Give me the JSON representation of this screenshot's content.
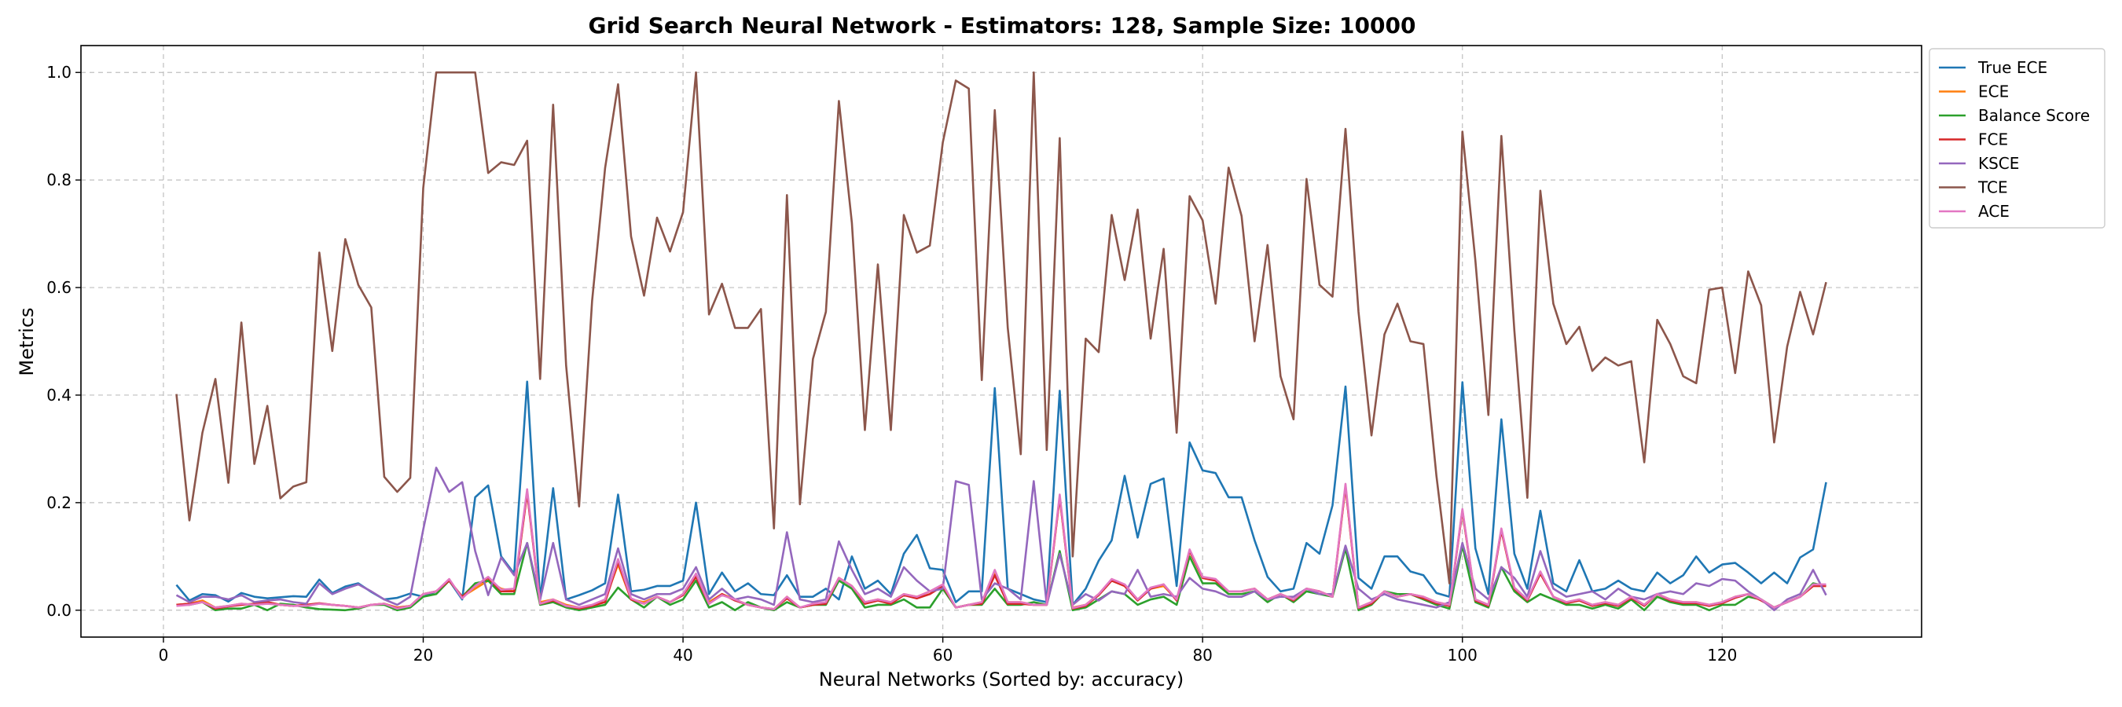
{
  "chart_data": {
    "type": "line",
    "title": "Grid Search Neural Network - Estimators: 128, Sample Size: 10000",
    "xlabel": "Neural Networks (Sorted by: accuracy)",
    "ylabel": "Metrics",
    "xlim": [
      -6.35,
      135.35
    ],
    "ylim": [
      -0.05,
      1.05
    ],
    "xticks": [
      0,
      20,
      40,
      60,
      80,
      100,
      120
    ],
    "yticks": [
      0.0,
      0.2,
      0.4,
      0.6,
      0.8,
      1.0
    ],
    "grid": true,
    "legend_position": "outside-top-right",
    "series": [
      {
        "name": "True ECE",
        "color": "#1f77b4",
        "values": [
          0.047,
          0.018,
          0.03,
          0.028,
          0.016,
          0.032,
          0.025,
          0.022,
          0.024,
          0.026,
          0.025,
          0.057,
          0.032,
          0.044,
          0.05,
          0.034,
          0.02,
          0.023,
          0.031,
          0.025,
          0.035,
          0.055,
          0.02,
          0.21,
          0.232,
          0.1,
          0.068,
          0.425,
          0.02,
          0.227,
          0.02,
          0.028,
          0.037,
          0.05,
          0.215,
          0.035,
          0.038,
          0.045,
          0.045,
          0.055,
          0.2,
          0.03,
          0.07,
          0.035,
          0.05,
          0.03,
          0.028,
          0.065,
          0.025,
          0.025,
          0.04,
          0.02,
          0.1,
          0.04,
          0.055,
          0.03,
          0.105,
          0.14,
          0.078,
          0.075,
          0.015,
          0.035,
          0.035,
          0.413,
          0.04,
          0.03,
          0.02,
          0.015,
          0.408,
          0.01,
          0.04,
          0.092,
          0.13,
          0.25,
          0.135,
          0.235,
          0.245,
          0.045,
          0.312,
          0.26,
          0.255,
          0.21,
          0.21,
          0.13,
          0.062,
          0.035,
          0.04,
          0.125,
          0.105,
          0.195,
          0.416,
          0.06,
          0.04,
          0.1,
          0.1,
          0.072,
          0.065,
          0.032,
          0.025,
          0.424,
          0.115,
          0.03,
          0.355,
          0.105,
          0.04,
          0.185,
          0.05,
          0.035,
          0.093,
          0.035,
          0.04,
          0.055,
          0.04,
          0.035,
          0.07,
          0.05,
          0.065,
          0.1,
          0.07,
          0.085,
          0.088,
          0.07,
          0.05,
          0.07,
          0.05,
          0.098,
          0.113,
          0.238
        ]
      },
      {
        "name": "ECE",
        "color": "#ff7f0e",
        "values": [
          0.01,
          0.012,
          0.018,
          0.005,
          0.008,
          0.012,
          0.01,
          0.015,
          0.01,
          0.008,
          0.01,
          0.012,
          0.01,
          0.008,
          0.005,
          0.01,
          0.012,
          0.005,
          0.008,
          0.03,
          0.035,
          0.055,
          0.025,
          0.04,
          0.055,
          0.04,
          0.035,
          0.22,
          0.015,
          0.02,
          0.01,
          0.005,
          0.008,
          0.02,
          0.085,
          0.02,
          0.015,
          0.025,
          0.015,
          0.03,
          0.065,
          0.015,
          0.03,
          0.02,
          0.01,
          0.005,
          0.002,
          0.025,
          0.005,
          0.01,
          0.015,
          0.06,
          0.045,
          0.015,
          0.02,
          0.015,
          0.03,
          0.025,
          0.035,
          0.045,
          0.005,
          0.01,
          0.015,
          0.07,
          0.015,
          0.015,
          0.01,
          0.01,
          0.21,
          0.005,
          0.01,
          0.03,
          0.055,
          0.045,
          0.02,
          0.04,
          0.045,
          0.02,
          0.11,
          0.06,
          0.055,
          0.035,
          0.035,
          0.04,
          0.02,
          0.03,
          0.02,
          0.04,
          0.035,
          0.025,
          0.23,
          0.005,
          0.015,
          0.035,
          0.025,
          0.03,
          0.025,
          0.015,
          0.01,
          0.185,
          0.02,
          0.01,
          0.15,
          0.04,
          0.02,
          0.07,
          0.025,
          0.015,
          0.02,
          0.01,
          0.015,
          0.01,
          0.025,
          0.01,
          0.03,
          0.02,
          0.015,
          0.015,
          0.01,
          0.015,
          0.025,
          0.03,
          0.02,
          0.005,
          0.015,
          0.025,
          0.045,
          0.045
        ]
      },
      {
        "name": "Balance Score",
        "color": "#2ca02c",
        "values": [
          0.01,
          0.01,
          0.015,
          0.0,
          0.003,
          0.003,
          0.01,
          0.0,
          0.012,
          0.01,
          0.005,
          0.002,
          0.001,
          0.0,
          0.003,
          0.01,
          0.01,
          0.0,
          0.005,
          0.025,
          0.03,
          0.055,
          0.025,
          0.05,
          0.055,
          0.03,
          0.03,
          0.125,
          0.01,
          0.015,
          0.005,
          0.0,
          0.005,
          0.01,
          0.042,
          0.02,
          0.005,
          0.025,
          0.01,
          0.02,
          0.055,
          0.005,
          0.015,
          0.0,
          0.015,
          0.005,
          0.0,
          0.015,
          0.005,
          0.01,
          0.01,
          0.055,
          0.04,
          0.005,
          0.01,
          0.01,
          0.02,
          0.005,
          0.005,
          0.04,
          0.005,
          0.01,
          0.01,
          0.04,
          0.01,
          0.01,
          0.015,
          0.01,
          0.11,
          0.0,
          0.005,
          0.02,
          0.035,
          0.03,
          0.01,
          0.02,
          0.025,
          0.01,
          0.1,
          0.05,
          0.05,
          0.03,
          0.03,
          0.035,
          0.015,
          0.03,
          0.015,
          0.035,
          0.03,
          0.025,
          0.115,
          0.0,
          0.01,
          0.035,
          0.03,
          0.03,
          0.02,
          0.01,
          0.003,
          0.12,
          0.015,
          0.005,
          0.08,
          0.035,
          0.015,
          0.03,
          0.02,
          0.01,
          0.01,
          0.003,
          0.01,
          0.003,
          0.02,
          0.0,
          0.025,
          0.015,
          0.01,
          0.01,
          0.0,
          0.01,
          0.01,
          0.025,
          0.02,
          0.005,
          0.015,
          0.025,
          0.05,
          0.045
        ]
      },
      {
        "name": "FCE",
        "color": "#d62728",
        "values": [
          0.01,
          0.012,
          0.015,
          0.003,
          0.007,
          0.01,
          0.012,
          0.015,
          0.01,
          0.008,
          0.01,
          0.013,
          0.01,
          0.008,
          0.005,
          0.01,
          0.012,
          0.004,
          0.008,
          0.03,
          0.035,
          0.055,
          0.025,
          0.045,
          0.06,
          0.035,
          0.035,
          0.218,
          0.012,
          0.018,
          0.008,
          0.003,
          0.008,
          0.015,
          0.09,
          0.02,
          0.012,
          0.025,
          0.015,
          0.028,
          0.062,
          0.012,
          0.03,
          0.018,
          0.01,
          0.005,
          0.002,
          0.022,
          0.005,
          0.01,
          0.012,
          0.06,
          0.045,
          0.012,
          0.018,
          0.012,
          0.028,
          0.022,
          0.03,
          0.045,
          0.005,
          0.01,
          0.012,
          0.065,
          0.012,
          0.012,
          0.01,
          0.01,
          0.21,
          0.003,
          0.008,
          0.028,
          0.055,
          0.045,
          0.018,
          0.04,
          0.048,
          0.018,
          0.11,
          0.06,
          0.055,
          0.035,
          0.035,
          0.04,
          0.02,
          0.03,
          0.018,
          0.04,
          0.035,
          0.025,
          0.23,
          0.004,
          0.012,
          0.035,
          0.025,
          0.03,
          0.022,
          0.013,
          0.008,
          0.185,
          0.018,
          0.008,
          0.148,
          0.04,
          0.018,
          0.068,
          0.025,
          0.013,
          0.018,
          0.008,
          0.013,
          0.008,
          0.023,
          0.008,
          0.03,
          0.018,
          0.013,
          0.013,
          0.008,
          0.013,
          0.023,
          0.03,
          0.018,
          0.005,
          0.015,
          0.025,
          0.045,
          0.045
        ]
      },
      {
        "name": "KSCE",
        "color": "#9467bd",
        "values": [
          0.028,
          0.015,
          0.025,
          0.025,
          0.02,
          0.028,
          0.015,
          0.018,
          0.02,
          0.015,
          0.012,
          0.05,
          0.03,
          0.04,
          0.048,
          0.035,
          0.02,
          0.01,
          0.025,
          0.15,
          0.265,
          0.22,
          0.238,
          0.11,
          0.028,
          0.098,
          0.065,
          0.125,
          0.02,
          0.125,
          0.02,
          0.01,
          0.02,
          0.03,
          0.115,
          0.03,
          0.02,
          0.03,
          0.03,
          0.04,
          0.08,
          0.02,
          0.04,
          0.02,
          0.025,
          0.02,
          0.01,
          0.145,
          0.02,
          0.015,
          0.02,
          0.128,
          0.075,
          0.03,
          0.04,
          0.025,
          0.08,
          0.055,
          0.035,
          0.04,
          0.24,
          0.233,
          0.02,
          0.05,
          0.04,
          0.02,
          0.24,
          0.01,
          0.105,
          0.01,
          0.03,
          0.018,
          0.035,
          0.03,
          0.075,
          0.025,
          0.03,
          0.025,
          0.06,
          0.04,
          0.035,
          0.025,
          0.025,
          0.035,
          0.02,
          0.025,
          0.025,
          0.04,
          0.03,
          0.03,
          0.12,
          0.04,
          0.02,
          0.03,
          0.02,
          0.015,
          0.01,
          0.005,
          0.015,
          0.125,
          0.04,
          0.02,
          0.08,
          0.06,
          0.025,
          0.11,
          0.04,
          0.025,
          0.03,
          0.035,
          0.02,
          0.04,
          0.025,
          0.02,
          0.03,
          0.035,
          0.03,
          0.05,
          0.045,
          0.058,
          0.055,
          0.035,
          0.02,
          0.0,
          0.02,
          0.03,
          0.075,
          0.028
        ]
      },
      {
        "name": "TCE",
        "color": "#8c564b",
        "values": [
          0.402,
          0.167,
          0.33,
          0.43,
          0.237,
          0.535,
          0.272,
          0.38,
          0.208,
          0.23,
          0.238,
          0.665,
          0.482,
          0.69,
          0.605,
          0.563,
          0.248,
          0.22,
          0.246,
          0.785,
          1.0,
          1.0,
          1.0,
          1.0,
          0.813,
          0.833,
          0.828,
          0.873,
          0.43,
          0.94,
          0.455,
          0.193,
          0.575,
          0.822,
          0.978,
          0.695,
          0.585,
          0.73,
          0.667,
          0.74,
          1.0,
          0.55,
          0.607,
          0.525,
          0.525,
          0.56,
          0.152,
          0.772,
          0.197,
          0.467,
          0.555,
          0.947,
          0.72,
          0.335,
          0.643,
          0.335,
          0.735,
          0.665,
          0.678,
          0.87,
          0.985,
          0.97,
          0.428,
          0.93,
          0.525,
          0.29,
          1.0,
          0.298,
          0.878,
          0.1,
          0.505,
          0.48,
          0.735,
          0.614,
          0.745,
          0.505,
          0.672,
          0.33,
          0.77,
          0.725,
          0.57,
          0.823,
          0.733,
          0.5,
          0.679,
          0.435,
          0.355,
          0.802,
          0.605,
          0.583,
          0.895,
          0.555,
          0.325,
          0.513,
          0.57,
          0.5,
          0.495,
          0.25,
          0.05,
          0.89,
          0.65,
          0.363,
          0.882,
          0.52,
          0.209,
          0.78,
          0.57,
          0.495,
          0.527,
          0.445,
          0.47,
          0.455,
          0.463,
          0.275,
          0.54,
          0.495,
          0.435,
          0.422,
          0.596,
          0.6,
          0.441,
          0.63,
          0.567,
          0.312,
          0.49,
          0.592,
          0.513,
          0.61
        ]
      },
      {
        "name": "ACE",
        "color": "#e377c2",
        "values": [
          0.008,
          0.01,
          0.015,
          0.005,
          0.008,
          0.012,
          0.01,
          0.012,
          0.01,
          0.008,
          0.008,
          0.012,
          0.01,
          0.008,
          0.005,
          0.01,
          0.012,
          0.003,
          0.008,
          0.03,
          0.035,
          0.058,
          0.022,
          0.045,
          0.062,
          0.038,
          0.04,
          0.225,
          0.012,
          0.02,
          0.008,
          0.005,
          0.01,
          0.02,
          0.095,
          0.022,
          0.012,
          0.025,
          0.015,
          0.03,
          0.068,
          0.012,
          0.028,
          0.02,
          0.01,
          0.005,
          0.002,
          0.025,
          0.005,
          0.012,
          0.015,
          0.06,
          0.045,
          0.015,
          0.02,
          0.015,
          0.03,
          0.025,
          0.035,
          0.048,
          0.005,
          0.01,
          0.015,
          0.075,
          0.015,
          0.015,
          0.01,
          0.01,
          0.215,
          0.004,
          0.01,
          0.03,
          0.058,
          0.048,
          0.02,
          0.042,
          0.048,
          0.02,
          0.113,
          0.062,
          0.058,
          0.035,
          0.035,
          0.04,
          0.02,
          0.03,
          0.02,
          0.04,
          0.035,
          0.025,
          0.235,
          0.005,
          0.015,
          0.035,
          0.025,
          0.03,
          0.025,
          0.015,
          0.01,
          0.188,
          0.02,
          0.01,
          0.152,
          0.042,
          0.02,
          0.072,
          0.025,
          0.015,
          0.02,
          0.01,
          0.015,
          0.01,
          0.025,
          0.01,
          0.03,
          0.02,
          0.015,
          0.015,
          0.01,
          0.015,
          0.025,
          0.03,
          0.02,
          0.005,
          0.015,
          0.025,
          0.048,
          0.048
        ]
      }
    ]
  }
}
